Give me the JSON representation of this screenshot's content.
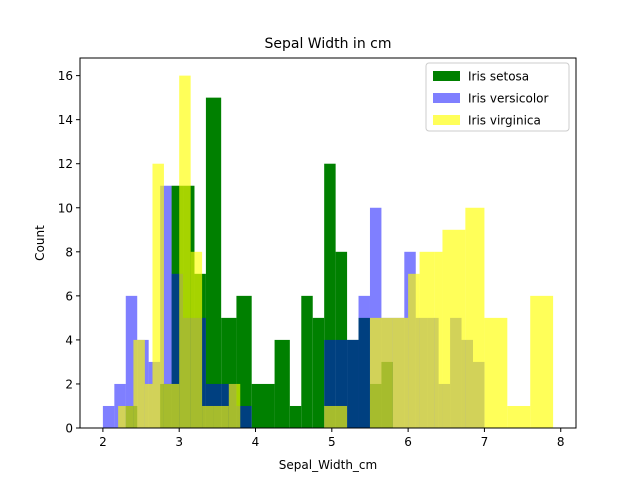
{
  "chart_data": {
    "type": "bar",
    "subtype": "overlaid-histogram",
    "title": "Sepal Width in cm",
    "xlabel": "Sepal_Width_cm",
    "ylabel": "Count",
    "xlim": [
      1.7,
      8.2
    ],
    "ylim": [
      0,
      16.8
    ],
    "x_ticks": [
      2,
      3,
      4,
      5,
      6,
      7,
      8
    ],
    "y_ticks": [
      0,
      2,
      4,
      6,
      8,
      10,
      12,
      14,
      16
    ],
    "grid": false,
    "legend_position": "top-right",
    "series": [
      {
        "name": "Iris setosa",
        "color": "#008000",
        "opacity": 1.0,
        "bins": [
          {
            "x0": 2.3,
            "x1": 2.45,
            "value": 1
          },
          {
            "x0": 2.75,
            "x1": 2.9,
            "value": 2
          },
          {
            "x0": 2.9,
            "x1": 3.05,
            "value": 11
          },
          {
            "x0": 3.05,
            "x1": 3.2,
            "value": 11
          },
          {
            "x0": 3.2,
            "x1": 3.35,
            "value": 7
          },
          {
            "x0": 3.35,
            "x1": 3.55,
            "value": 15
          },
          {
            "x0": 3.55,
            "x1": 3.75,
            "value": 5
          },
          {
            "x0": 3.75,
            "x1": 3.95,
            "value": 6
          },
          {
            "x0": 3.95,
            "x1": 4.25,
            "value": 2
          },
          {
            "x0": 4.25,
            "x1": 4.45,
            "value": 4
          },
          {
            "x0": 4.45,
            "x1": 4.6,
            "value": 1
          },
          {
            "x0": 4.6,
            "x1": 4.75,
            "value": 6
          },
          {
            "x0": 4.75,
            "x1": 4.9,
            "value": 5
          },
          {
            "x0": 4.9,
            "x1": 5.05,
            "value": 12
          },
          {
            "x0": 5.05,
            "x1": 5.2,
            "value": 8
          },
          {
            "x0": 5.2,
            "x1": 5.35,
            "value": 4
          },
          {
            "x0": 5.35,
            "x1": 5.5,
            "value": 5
          },
          {
            "x0": 5.5,
            "x1": 5.65,
            "value": 2
          },
          {
            "x0": 5.65,
            "x1": 5.8,
            "value": 3
          }
        ]
      },
      {
        "name": "Iris versicolor",
        "color": "#0000ff",
        "opacity": 0.5,
        "bins": [
          {
            "x0": 2.0,
            "x1": 2.15,
            "value": 1
          },
          {
            "x0": 2.15,
            "x1": 2.3,
            "value": 2
          },
          {
            "x0": 2.3,
            "x1": 2.45,
            "value": 6
          },
          {
            "x0": 2.45,
            "x1": 2.6,
            "value": 4
          },
          {
            "x0": 2.6,
            "x1": 2.75,
            "value": 3
          },
          {
            "x0": 2.75,
            "x1": 2.9,
            "value": 11
          },
          {
            "x0": 2.9,
            "x1": 3.05,
            "value": 7
          },
          {
            "x0": 3.05,
            "x1": 3.2,
            "value": 5
          },
          {
            "x0": 3.2,
            "x1": 3.35,
            "value": 5
          },
          {
            "x0": 3.35,
            "x1": 3.55,
            "value": 2
          },
          {
            "x0": 3.55,
            "x1": 3.75,
            "value": 2
          },
          {
            "x0": 3.75,
            "x1": 3.95,
            "value": 1
          },
          {
            "x0": 4.9,
            "x1": 5.05,
            "value": 4
          },
          {
            "x0": 5.05,
            "x1": 5.2,
            "value": 4
          },
          {
            "x0": 5.2,
            "x1": 5.35,
            "value": 4
          },
          {
            "x0": 5.35,
            "x1": 5.5,
            "value": 6
          },
          {
            "x0": 5.5,
            "x1": 5.65,
            "value": 10
          },
          {
            "x0": 5.65,
            "x1": 5.8,
            "value": 5
          },
          {
            "x0": 5.8,
            "x1": 5.95,
            "value": 5
          },
          {
            "x0": 5.95,
            "x1": 6.1,
            "value": 8
          },
          {
            "x0": 6.1,
            "x1": 6.25,
            "value": 5
          },
          {
            "x0": 6.25,
            "x1": 6.4,
            "value": 5
          },
          {
            "x0": 6.4,
            "x1": 6.55,
            "value": 2
          },
          {
            "x0": 6.55,
            "x1": 6.7,
            "value": 5
          },
          {
            "x0": 6.7,
            "x1": 6.85,
            "value": 4
          },
          {
            "x0": 6.85,
            "x1": 7.0,
            "value": 3
          }
        ]
      },
      {
        "name": "Iris virginica",
        "color": "#ffff00",
        "opacity": 0.65,
        "bins": [
          {
            "x0": 2.2,
            "x1": 2.3,
            "value": 1
          },
          {
            "x0": 2.3,
            "x1": 2.4,
            "value": 1
          },
          {
            "x0": 2.4,
            "x1": 2.55,
            "value": 4
          },
          {
            "x0": 2.55,
            "x1": 2.65,
            "value": 2
          },
          {
            "x0": 2.65,
            "x1": 2.8,
            "value": 12
          },
          {
            "x0": 2.8,
            "x1": 3.0,
            "value": 2
          },
          {
            "x0": 3.0,
            "x1": 3.15,
            "value": 16
          },
          {
            "x0": 3.15,
            "x1": 3.3,
            "value": 8
          },
          {
            "x0": 3.3,
            "x1": 3.45,
            "value": 1
          },
          {
            "x0": 3.45,
            "x1": 3.65,
            "value": 1
          },
          {
            "x0": 3.65,
            "x1": 3.8,
            "value": 2
          },
          {
            "x0": 4.9,
            "x1": 5.2,
            "value": 1
          },
          {
            "x0": 5.5,
            "x1": 5.8,
            "value": 5
          },
          {
            "x0": 5.8,
            "x1": 6.0,
            "value": 5
          },
          {
            "x0": 6.0,
            "x1": 6.15,
            "value": 7
          },
          {
            "x0": 6.15,
            "x1": 6.35,
            "value": 8
          },
          {
            "x0": 6.35,
            "x1": 6.45,
            "value": 8
          },
          {
            "x0": 6.45,
            "x1": 6.75,
            "value": 9
          },
          {
            "x0": 6.75,
            "x1": 7.0,
            "value": 10
          },
          {
            "x0": 7.0,
            "x1": 7.3,
            "value": 5
          },
          {
            "x0": 7.3,
            "x1": 7.6,
            "value": 1
          },
          {
            "x0": 7.6,
            "x1": 7.9,
            "value": 6
          }
        ]
      }
    ]
  }
}
